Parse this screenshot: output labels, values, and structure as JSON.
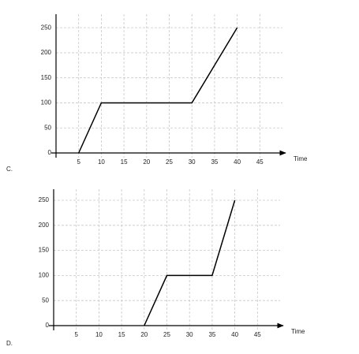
{
  "chart_data": [
    {
      "type": "line",
      "label": "C.",
      "xlabel": "Time",
      "x": [
        5,
        10,
        30,
        40
      ],
      "values": [
        0,
        100,
        100,
        250
      ],
      "color": "#000000",
      "xlim": [
        0,
        50
      ],
      "ylim": [
        0,
        277
      ],
      "xticks": [
        5,
        10,
        15,
        20,
        25,
        30,
        35,
        40,
        45
      ],
      "yticks": [
        0,
        50,
        100,
        150,
        200,
        250
      ],
      "grid": true
    },
    {
      "type": "line",
      "label": "D.",
      "xlabel": "Time",
      "x": [
        20,
        25,
        35,
        40
      ],
      "values": [
        0,
        100,
        100,
        250
      ],
      "color": "#000000",
      "xlim": [
        0,
        50
      ],
      "ylim": [
        0,
        272
      ],
      "xticks": [
        5,
        10,
        15,
        20,
        25,
        30,
        35,
        40,
        45
      ],
      "yticks": [
        0,
        50,
        100,
        150,
        200,
        250
      ],
      "grid": true
    }
  ]
}
